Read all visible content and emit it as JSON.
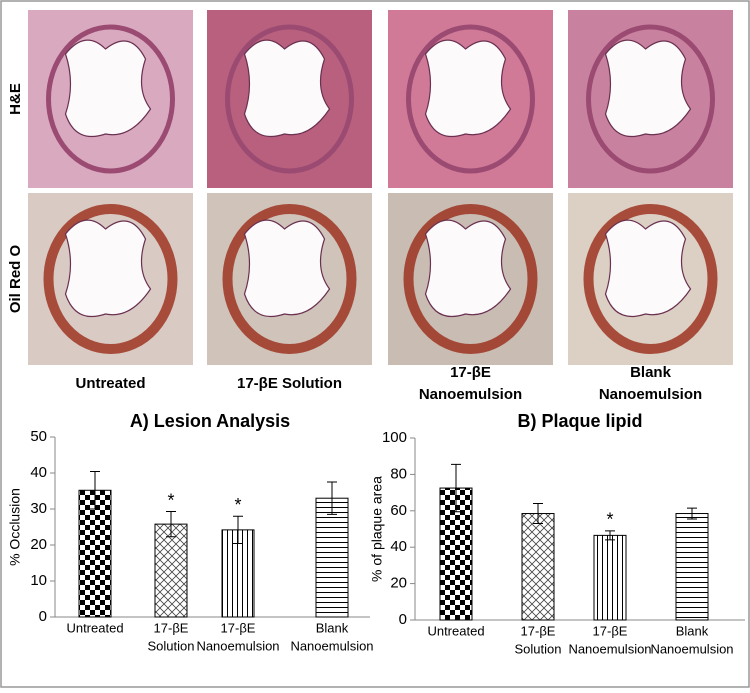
{
  "figure": {
    "row_labels": [
      "H&E",
      "Oil Red O"
    ],
    "column_labels": [
      [
        "Untreated"
      ],
      [
        "17-βE Solution"
      ],
      [
        "17-βE",
        "Nanoemulsion"
      ],
      [
        "Blank",
        "Nanoemulsion"
      ]
    ]
  },
  "chart_data": [
    {
      "type": "bar",
      "title": "A) Lesion Analysis",
      "y_label": "% Occlusion",
      "categories": [
        [
          "Untreated"
        ],
        [
          "17-βE",
          "Solution"
        ],
        [
          "17-βE",
          "Nanoemulsion"
        ],
        [
          "Blank",
          "Nanoemulsion"
        ]
      ],
      "values": [
        35.2,
        25.8,
        24.2,
        33.0
      ],
      "errors": [
        5.2,
        3.5,
        3.8,
        4.5
      ],
      "markers": [
        null,
        "*",
        "*",
        null
      ],
      "patterns": [
        "checker",
        "crosshatch",
        "vertical",
        "horizontal"
      ],
      "ylim": [
        0,
        50
      ],
      "yticks": [
        0,
        10,
        20,
        30,
        40,
        50
      ],
      "grid": false
    },
    {
      "type": "bar",
      "title": "B) Plaque lipid",
      "y_label": "% of plaque area",
      "categories": [
        [
          "Untreated"
        ],
        [
          "17-βE",
          "Solution"
        ],
        [
          "17-βE",
          "Nanoemulsion"
        ],
        [
          "Blank",
          "Nanoemulsion"
        ]
      ],
      "values": [
        72.5,
        58.5,
        46.5,
        58.5
      ],
      "errors": [
        13,
        5.5,
        2.5,
        3
      ],
      "markers": [
        null,
        null,
        "*",
        null
      ],
      "patterns": [
        "checker",
        "crosshatch",
        "vertical",
        "horizontal"
      ],
      "ylim": [
        0,
        100
      ],
      "yticks": [
        0,
        20,
        40,
        60,
        80,
        100
      ],
      "grid": false
    }
  ]
}
